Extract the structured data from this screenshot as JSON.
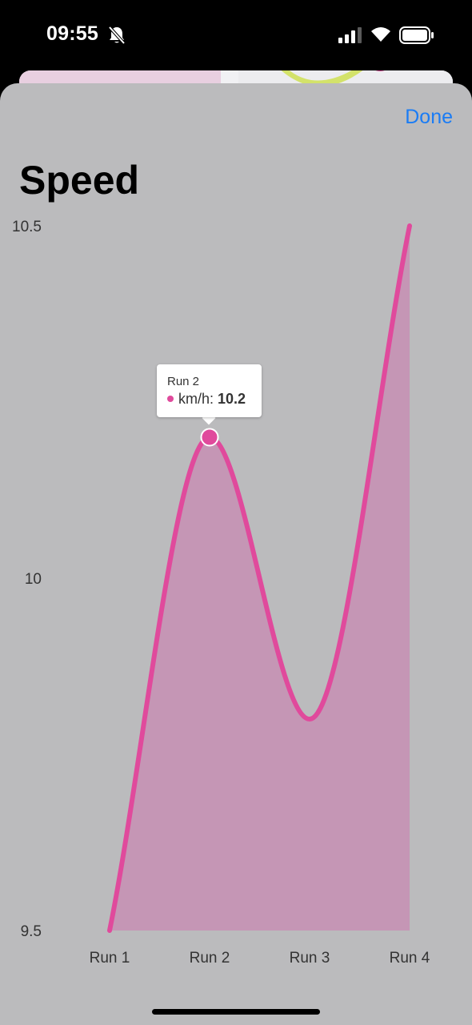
{
  "status_bar": {
    "time": "09:55"
  },
  "header": {
    "done_label": "Done",
    "title": "Speed"
  },
  "colors": {
    "accent": "#1a7cf5",
    "series": "#e04a9c",
    "fill": "#c596b5",
    "sheet": "#bbbbbd"
  },
  "chart_data": {
    "type": "area",
    "title": "Speed",
    "categories": [
      "Run 1",
      "Run 2",
      "Run 3",
      "Run 4"
    ],
    "series": [
      {
        "name": "km/h",
        "values": [
          9.5,
          10.2,
          9.8,
          10.5
        ]
      }
    ],
    "y_ticks": [
      "10.5",
      "10",
      "9.5"
    ],
    "ylim": [
      9.5,
      10.5
    ],
    "xlabel": "",
    "ylabel": "",
    "smooth": true,
    "highlight_index": 1
  },
  "tooltip": {
    "title": "Run 2",
    "series_label": "km/h:",
    "value": "10.2"
  }
}
